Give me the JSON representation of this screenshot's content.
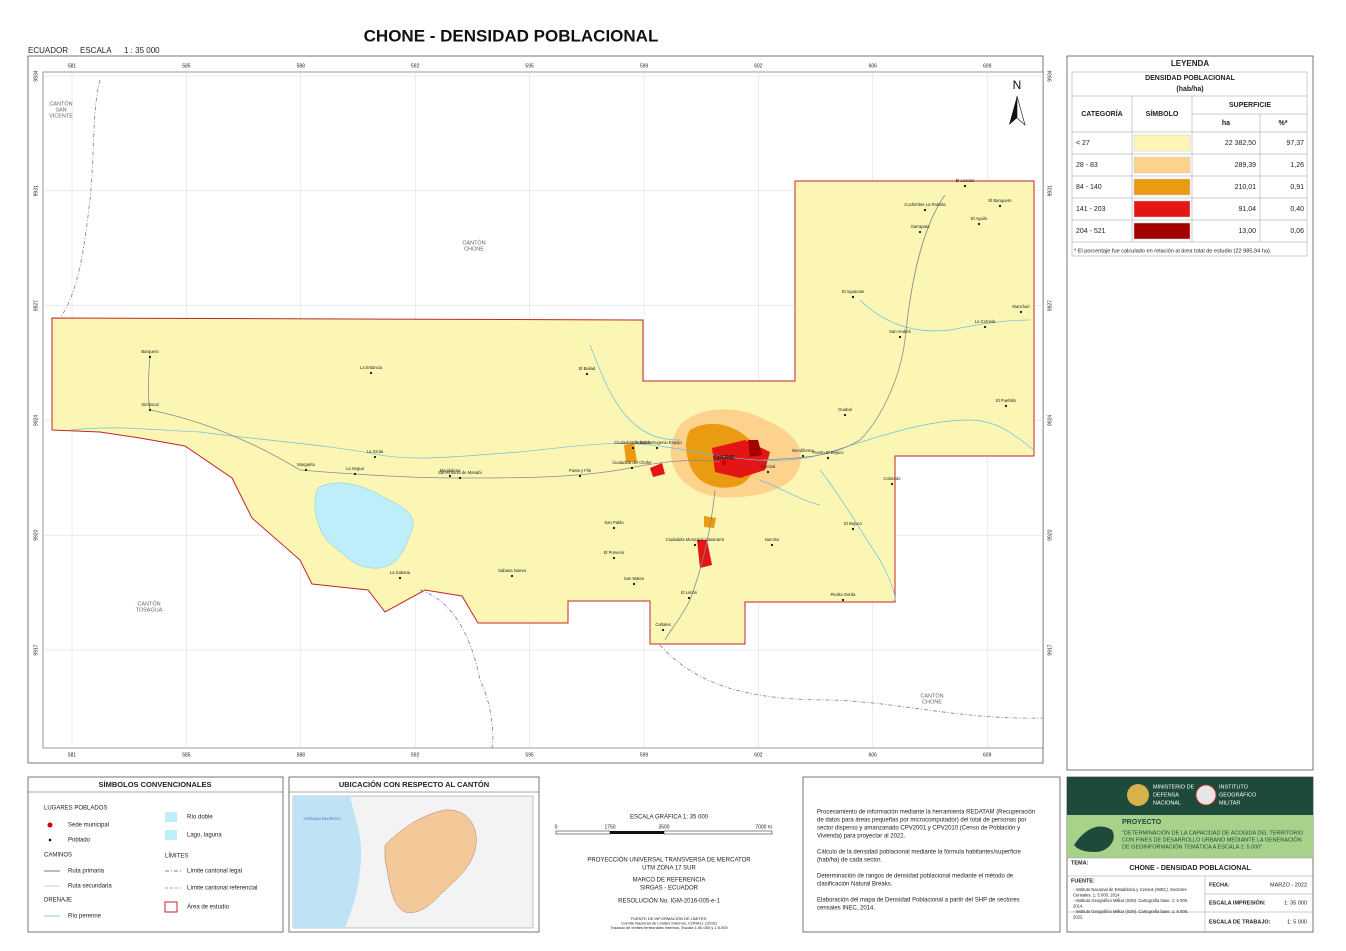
{
  "header": {
    "title": "CHONE - DENSIDAD POBLACIONAL",
    "country": "ECUADOR",
    "scale_label": "ESCALA",
    "scale": "1 : 35 000"
  },
  "map": {
    "x_ticks": [
      581,
      585,
      588,
      592,
      595,
      599,
      602,
      606,
      609
    ],
    "y_ticks": [
      9934,
      9931,
      9927,
      9924,
      9920,
      9917
    ],
    "north": "N",
    "canton_labels": [
      [
        "CANTÓN",
        "SAN",
        "VICENTE"
      ],
      [
        "CANTÓN",
        "CHONE"
      ],
      [
        "CANTÓN",
        "TOSAGUA"
      ],
      [
        "CANTÓN",
        "CHONE"
      ]
    ],
    "places": [
      "Barquero",
      "Simbocal",
      "La Estancia",
      "La Gruta",
      "La Segua",
      "Margarita",
      "Magdalena",
      "San Antonio de Manabí",
      "El Bailad",
      "Ciudadela de Marzo",
      "Ciudadela Eugenio Espejo",
      "Ciudadela del Chofer",
      "Punta y Filo",
      "CHONE",
      "San Pablo",
      "El Porvenir",
      "San Mateo",
      "Sabana Nueva",
      "La Sabana",
      "Ciudadela Municipal Casanarro",
      "El Limón",
      "Cañales",
      "Bendiforma",
      "Carrizal",
      "Puerto El Bejuco",
      "Guabal",
      "El Bejuco",
      "Narciso",
      "Piedra Gorda",
      "Colorado",
      "San Andrés",
      "El Aguacate",
      "Garrapata",
      "Cuchimbre La Palmita",
      "El Locutor",
      "El Banquero",
      "El Aguilo",
      "Manchuri",
      "La Cornela",
      "El Pueblito"
    ]
  },
  "legend": {
    "title": "LEYENDA",
    "subtitle": "DENSIDAD POBLACIONAL",
    "unit": "(hab/ha)",
    "col_category": "CATEGORÍA",
    "col_symbol": "SÍMBOLO",
    "col_area": "SUPERFICIE",
    "col_ha": "ha",
    "col_pct": "%*",
    "rows": [
      {
        "category": "< 27",
        "color": "#fbf6b3",
        "ha": "22 382,50",
        "pct": "97,37"
      },
      {
        "category": "28 - 83",
        "color": "#fdd28d",
        "ha": "289,39",
        "pct": "1,26"
      },
      {
        "category": "84 - 140",
        "color": "#e99c12",
        "ha": "210,01",
        "pct": "0,91"
      },
      {
        "category": "141 - 203",
        "color": "#e41515",
        "ha": "91,04",
        "pct": "0,40"
      },
      {
        "category": "204 - 521",
        "color": "#a50000",
        "ha": "13,00",
        "pct": "0,06"
      }
    ],
    "footnote": "* El porcentaje fue calculado en relación al área total de estudio (22 985,94 ha)."
  },
  "symbols": {
    "title": "SÍMBOLOS CONVENCIONALES",
    "places": "LUGARES POBLADOS",
    "seat": "Sede municipal",
    "village": "Poblado",
    "roads": "CAMINOS",
    "primary": "Ruta primaria",
    "secondary": "Ruta secundaria",
    "drainage": "DRENAJE",
    "river": "Río perenne",
    "double_river": "Río doble",
    "lake": "Lago, laguna",
    "limits": "LÍMITES",
    "legal": "Límite cantonal legal",
    "referential": "Límite cantonal referencial",
    "study": "Área de estudio"
  },
  "location": {
    "title": "UBICACIÓN CON RESPECTO AL CANTÓN",
    "ocean": "OCÉANO PACÍFICO"
  },
  "scale_panel": {
    "graphic": "ESCALA GRÁFICA   1: 35 000",
    "bar_ticks": [
      "0",
      "1750",
      "3500",
      "7000 m"
    ],
    "projection": [
      "PROYECCIÓN UNIVERSAL TRANSVERSA DE MERCATOR",
      "UTM ZONA 17 SUR"
    ],
    "datum": [
      "MARCO DE REFERENCIA",
      "SIRGAS - ECUADOR"
    ],
    "resolution": "RESOLUCIÓN No. IGM-2016-005-e-1",
    "source": [
      "FUENTE DE INFORMACIÓN DE LÍMITES:",
      "Comité Nacional de Límites Internos, CONALI. (2016)",
      "Trazado de límites territoriales internos. Escala 1:50.000 y 1:5.000"
    ]
  },
  "notes": [
    [
      "Procesamiento de información mediante la herramienta REDATAM (Recuperación",
      "de datos para áreas pequeñas por microcomputador) del total de personas por",
      "sector disperso y amanzanado CPV2001 y CPV2010 (Censo de Población y",
      "Vivienda) para proyectar al 2022."
    ],
    [
      "Cálculo de la densidad poblacional mediante la fórmula habitantes/superficie",
      "(hab/ha) de cada sector."
    ],
    [
      "Determinación de rangos de densidad poblacional mediante el método de",
      "clasificación Natural Breaks."
    ],
    [
      "Elaboración del mapa de Densidad Poblacional a partir del SHP de sectores",
      "censales INEC, 2014."
    ]
  ],
  "title_block": {
    "ministry": [
      "MINISTERIO DE",
      "DEFENSA",
      "NACIONAL"
    ],
    "institute": [
      "INSTITUTO",
      "GEOGRÁFICO",
      "MILITAR"
    ],
    "project_label": "PROYECTO",
    "project": [
      "\"DETERMINACIÓN DE LA CAPACIDAD DE ACOGIDA DEL TERRITORIO",
      "CON FINES DE DESARROLLO URBANO MEDIANTE LA GENERACIÓN",
      "DE GEOINFORMACIÓN TEMÁTICA A ESCALA 1: 5 000\""
    ],
    "theme_label": "TEMA:",
    "theme": "CHONE - DENSIDAD POBLACIONAL",
    "source_label": "FUENTE:",
    "sources": [
      "- Instituto Nacional de Estadística y Censos (INEC). Sectores",
      "Censales. 1: 5 000. 2014.",
      "- Instituto Geográfico Militar (IGM). Cartografía base. 1: 5 000.",
      "2014.",
      "- Instituto Geográfico Militar (IGM). Cartografía base. 1: 5 000.",
      "2022."
    ],
    "date_label": "FECHA:",
    "date": "MARZO - 2022",
    "print_scale_label": "ESCALA IMPRESIÓN:",
    "print_scale": "1: 35 000",
    "work_scale_label": "ESCALA DE TRABAJO:",
    "work_scale": "1: 5 000"
  }
}
